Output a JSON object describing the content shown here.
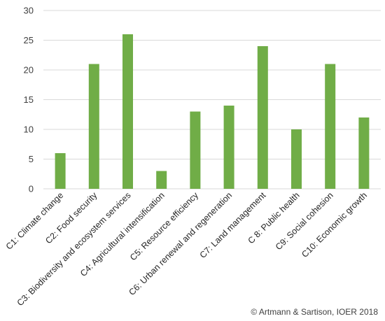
{
  "chart_data": {
    "type": "bar",
    "categories": [
      "C1: Climate change",
      "C2: Food security",
      "C3: Biodiversity and ecosystem services",
      "C4: Agricultural intensification",
      "C5: Resource efficiency",
      "C6: Urban renewal and regeneration",
      "C7: Land management",
      "C 8: Public health",
      "C9: Social cohesion",
      "C10: Economic growth"
    ],
    "values": [
      6,
      21,
      26,
      3,
      13,
      14,
      24,
      10,
      21,
      12
    ],
    "ylim": [
      0,
      30
    ],
    "yticks": [
      0,
      5,
      10,
      15,
      20,
      25,
      30
    ],
    "grid": "horizontal",
    "legend": "none",
    "bar_color": "#70ad47",
    "gridline_color": "#d9d9d9"
  },
  "copyright": "© Artmann & Sartison, IOER 2018"
}
